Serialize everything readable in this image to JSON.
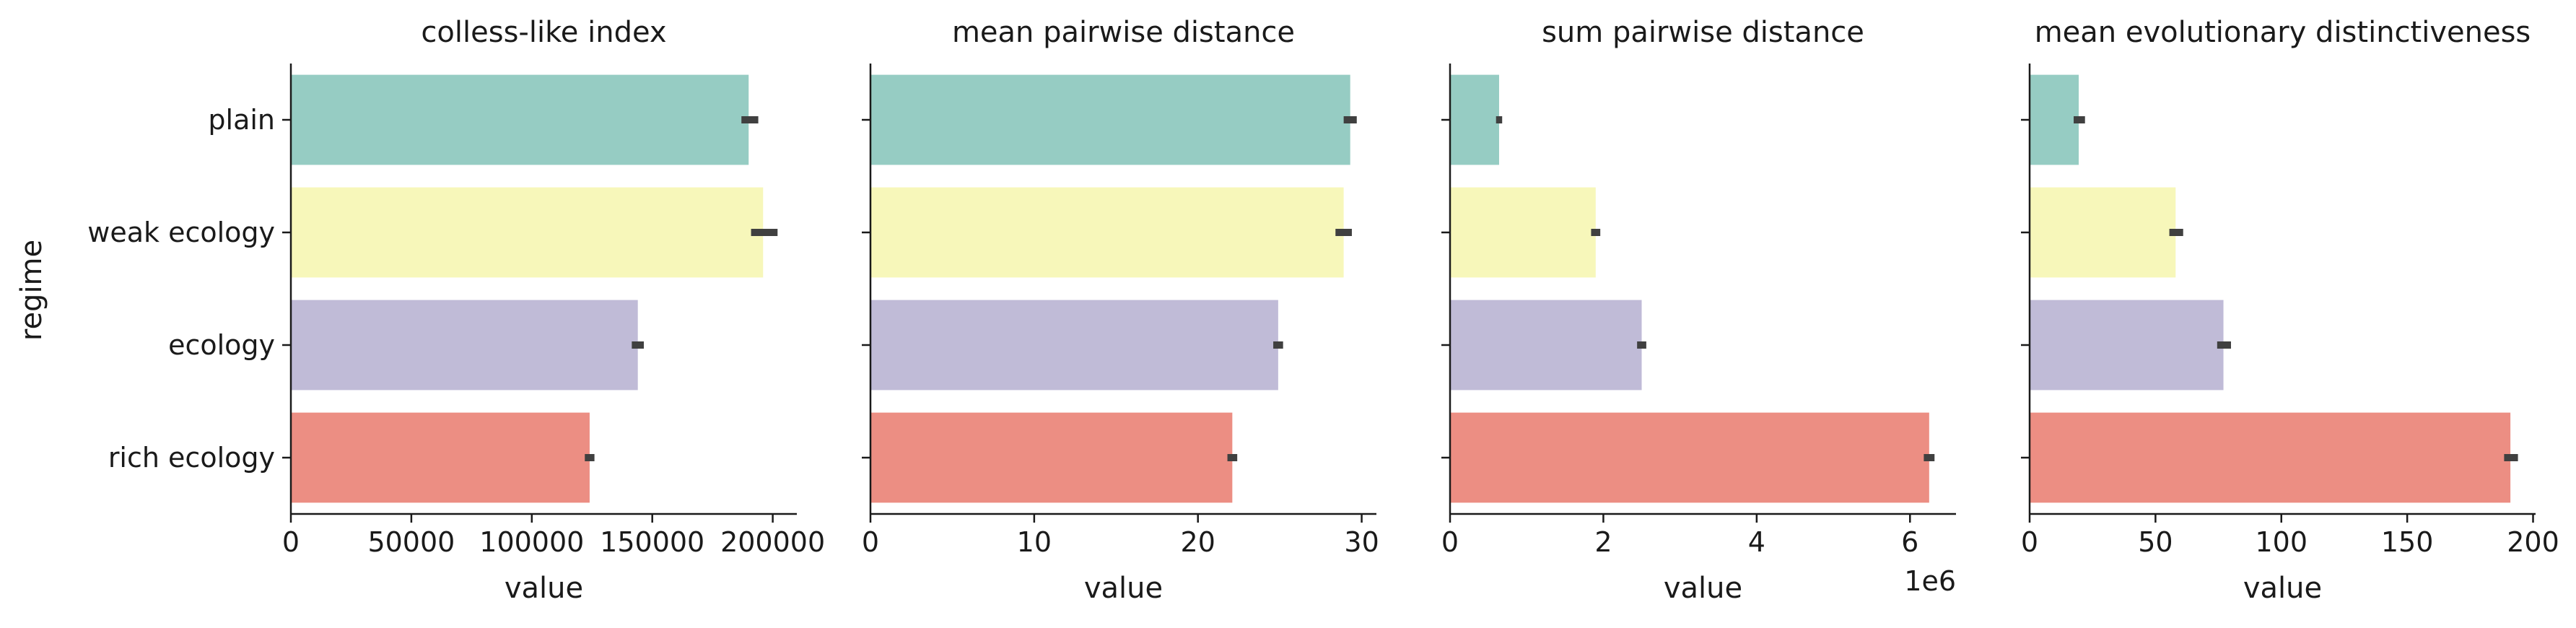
{
  "chart_data": {
    "type": "bar",
    "orientation": "horizontal",
    "y_axis_label": "regime",
    "categories": [
      "plain",
      "weak ecology",
      "ecology",
      "rich ecology"
    ],
    "colors": [
      "#96CCC3",
      "#F7F7BA",
      "#C0BBD7",
      "#EC8E83"
    ],
    "error_bar_color": "#404040",
    "grid": false,
    "panels": [
      {
        "title": "colless-like index",
        "xlabel": "value",
        "xlim": [
          0,
          210000
        ],
        "xticks": [
          0,
          50000,
          100000,
          150000,
          200000
        ],
        "xtick_labels": [
          "0",
          "50000",
          "100000",
          "150000",
          "200000"
        ],
        "offset_label": "",
        "values": [
          190000,
          196000,
          144000,
          124000
        ],
        "error_low": [
          187000,
          191000,
          141500,
          122000
        ],
        "error_high": [
          194000,
          202000,
          146500,
          126000
        ]
      },
      {
        "title": "mean pairwise distance",
        "xlabel": "value",
        "xlim": [
          0,
          30.9
        ],
        "xticks": [
          0,
          10,
          20,
          30
        ],
        "xtick_labels": [
          "0",
          "10",
          "20",
          "30"
        ],
        "offset_label": "",
        "values": [
          29.3,
          28.9,
          24.9,
          22.1
        ],
        "error_low": [
          28.9,
          28.4,
          24.6,
          21.8
        ],
        "error_high": [
          29.7,
          29.4,
          25.2,
          22.4
        ]
      },
      {
        "title": "sum pairwise distance",
        "xlabel": "value",
        "xlim": [
          0,
          6.6
        ],
        "xticks": [
          0,
          2,
          4,
          6
        ],
        "xtick_labels": [
          "0",
          "2",
          "4",
          "6"
        ],
        "offset_label": "1e6",
        "values": [
          0.64,
          1.9,
          2.5,
          6.25
        ],
        "error_low": [
          0.6,
          1.84,
          2.44,
          6.18
        ],
        "error_high": [
          0.68,
          1.96,
          2.56,
          6.32
        ]
      },
      {
        "title": "mean evolutionary distinctiveness",
        "xlabel": "value",
        "xlim": [
          0,
          201
        ],
        "xticks": [
          0,
          50,
          100,
          150,
          200
        ],
        "xtick_labels": [
          "0",
          "50",
          "100",
          "150",
          "200"
        ],
        "offset_label": "",
        "values": [
          19.5,
          58,
          77,
          191
        ],
        "error_low": [
          17.5,
          55.5,
          74.5,
          188.5
        ],
        "error_high": [
          22,
          61,
          80,
          194
        ]
      }
    ]
  }
}
